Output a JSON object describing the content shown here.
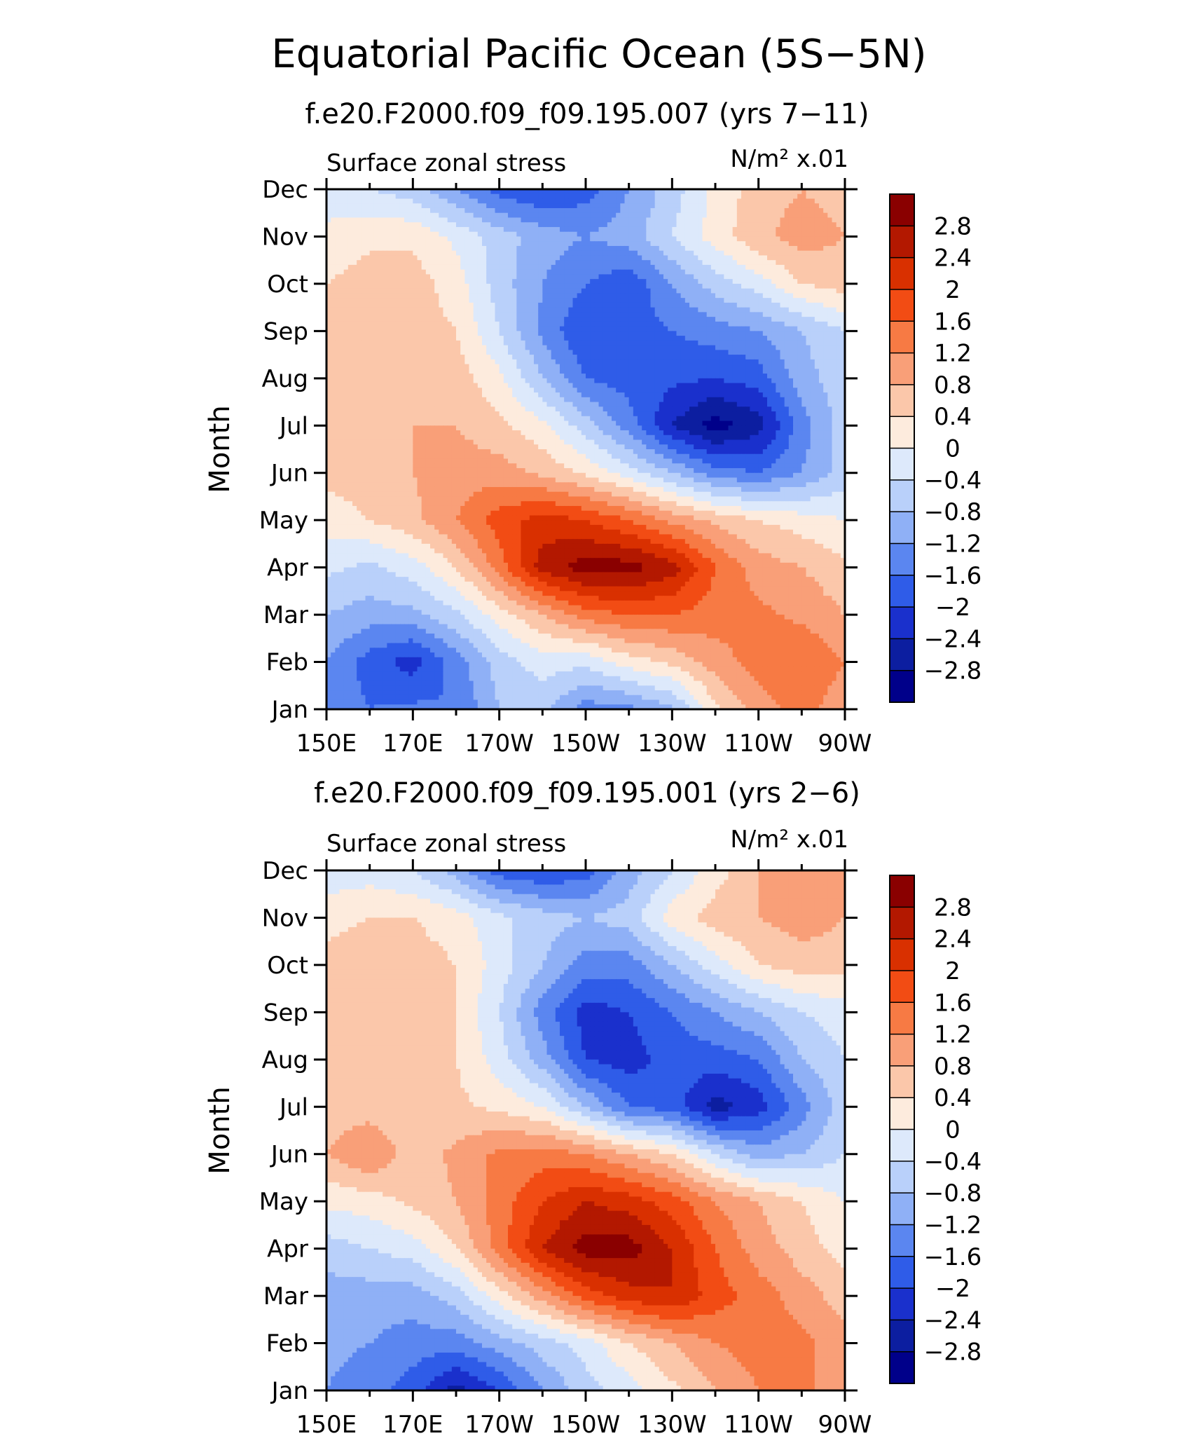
{
  "figure": {
    "title": "Equatorial Pacific Ocean (5S−5N)"
  },
  "chart_data": [
    {
      "type": "heatmap",
      "run_title": "f.e20.F2000.f09_f09.195.007 (yrs 7−11)",
      "variable_label": "Surface zonal stress",
      "units_label": "N/m² x.01",
      "ylabel": "Month",
      "x_ticks": [
        "150E",
        "170E",
        "170W",
        "150W",
        "130W",
        "110W",
        "90W"
      ],
      "y_ticks": [
        "Jan",
        "Feb",
        "Mar",
        "Apr",
        "May",
        "Jun",
        "Jul",
        "Aug",
        "Sep",
        "Oct",
        "Nov",
        "Dec"
      ],
      "xlim": [
        150,
        270
      ],
      "ylim": [
        1,
        12
      ],
      "x_grid_deg": [
        150,
        160,
        170,
        180,
        190,
        200,
        210,
        220,
        230,
        240,
        250,
        260,
        270
      ],
      "z_rows": [
        [
          -1.3,
          -1.6,
          -1.5,
          -1.6,
          -0.8,
          -0.7,
          -1.4,
          -1.3,
          -0.9,
          0.3,
          1.0,
          1.4,
          0.9
        ],
        [
          -1.2,
          -1.8,
          -2.2,
          -1.4,
          -0.6,
          -0.2,
          -0.3,
          0.2,
          0.5,
          1.0,
          1.4,
          1.6,
          1.2
        ],
        [
          -0.8,
          -1.0,
          -0.9,
          -0.5,
          0.2,
          0.8,
          1.4,
          1.6,
          1.6,
          1.4,
          1.3,
          1.1,
          0.8
        ],
        [
          -0.3,
          -0.5,
          -0.2,
          0.4,
          1.4,
          2.6,
          3.0,
          3.0,
          2.6,
          1.6,
          1.0,
          0.8,
          0.5
        ],
        [
          0.2,
          0.4,
          0.7,
          1.2,
          1.8,
          2.2,
          2.0,
          1.6,
          1.1,
          0.7,
          0.4,
          0.2,
          0.0
        ],
        [
          0.5,
          0.6,
          0.8,
          1.0,
          1.0,
          0.7,
          0.3,
          -0.2,
          -0.8,
          -1.4,
          -1.6,
          -1.2,
          -0.6
        ],
        [
          0.6,
          0.7,
          0.8,
          0.8,
          0.5,
          0.1,
          -0.6,
          -1.4,
          -2.4,
          -3.0,
          -2.6,
          -1.4,
          -0.6
        ],
        [
          0.6,
          0.7,
          0.7,
          0.6,
          0.1,
          -0.8,
          -1.6,
          -1.8,
          -1.9,
          -2.0,
          -1.8,
          -1.0,
          -0.5
        ],
        [
          0.5,
          0.7,
          0.6,
          0.4,
          -0.4,
          -1.3,
          -2.0,
          -1.8,
          -1.6,
          -1.4,
          -1.2,
          -0.8,
          -0.4
        ],
        [
          0.4,
          0.6,
          0.6,
          0.2,
          -0.6,
          -1.2,
          -1.6,
          -1.9,
          -1.2,
          -0.6,
          -0.2,
          0.4,
          0.6
        ],
        [
          0.1,
          0.3,
          0.3,
          -0.1,
          -0.6,
          -1.0,
          -1.2,
          -1.0,
          -0.4,
          0.2,
          0.7,
          1.0,
          0.8
        ],
        [
          -0.2,
          -0.4,
          -0.6,
          -1.2,
          -1.8,
          -2.0,
          -1.8,
          -1.2,
          -0.6,
          0.1,
          0.6,
          0.8,
          0.6
        ]
      ]
    },
    {
      "type": "heatmap",
      "run_title": "f.e20.F2000.f09_f09.195.001 (yrs 2−6)",
      "variable_label": "Surface zonal stress",
      "units_label": "N/m² x.01",
      "ylabel": "Month",
      "x_ticks": [
        "150E",
        "170E",
        "170W",
        "150W",
        "130W",
        "110W",
        "90W"
      ],
      "y_ticks": [
        "Jan",
        "Feb",
        "Mar",
        "Apr",
        "May",
        "Jun",
        "Jul",
        "Aug",
        "Sep",
        "Oct",
        "Nov",
        "Dec"
      ],
      "xlim": [
        150,
        270
      ],
      "ylim": [
        1,
        12
      ],
      "x_grid_deg": [
        150,
        160,
        170,
        180,
        190,
        200,
        210,
        220,
        230,
        240,
        250,
        260,
        270
      ],
      "z_rows": [
        [
          -1.2,
          -1.4,
          -1.8,
          -2.6,
          -2.0,
          -1.2,
          -0.6,
          -0.2,
          0.3,
          0.8,
          1.2,
          1.3,
          1.0
        ],
        [
          -1.1,
          -1.2,
          -1.4,
          -1.4,
          -1.0,
          -0.6,
          -0.2,
          0.4,
          0.8,
          1.2,
          1.4,
          1.3,
          1.0
        ],
        [
          -1.0,
          -1.0,
          -1.0,
          -0.6,
          0.2,
          1.0,
          1.8,
          2.2,
          2.4,
          1.8,
          1.4,
          1.0,
          0.6
        ],
        [
          -0.6,
          -0.4,
          -0.2,
          0.4,
          1.4,
          2.4,
          3.0,
          3.0,
          2.4,
          1.6,
          1.0,
          0.6,
          0.2
        ],
        [
          0.1,
          0.2,
          0.5,
          0.8,
          1.4,
          2.0,
          2.4,
          2.2,
          1.8,
          1.2,
          0.8,
          0.4,
          0.0
        ],
        [
          0.8,
          1.2,
          0.6,
          0.9,
          1.3,
          1.4,
          1.2,
          0.8,
          0.4,
          -0.4,
          -1.0,
          -0.8,
          -0.4
        ],
        [
          0.6,
          0.6,
          0.4,
          0.5,
          0.3,
          0.0,
          -0.8,
          -1.6,
          -1.8,
          -2.6,
          -2.2,
          -1.4,
          -0.6
        ],
        [
          0.6,
          0.6,
          0.6,
          0.4,
          -0.2,
          -1.0,
          -2.0,
          -2.2,
          -1.8,
          -1.8,
          -1.6,
          -0.8,
          -0.4
        ],
        [
          0.6,
          0.6,
          0.6,
          0.4,
          -0.4,
          -1.4,
          -2.2,
          -2.0,
          -1.6,
          -1.2,
          -0.8,
          -0.4,
          -0.2
        ],
        [
          0.5,
          0.6,
          0.6,
          0.4,
          -0.2,
          -0.8,
          -1.4,
          -1.4,
          -0.8,
          -0.2,
          0.4,
          0.6,
          0.6
        ],
        [
          0.3,
          0.4,
          0.4,
          0.2,
          -0.3,
          -0.6,
          -0.8,
          -0.6,
          0.2,
          0.6,
          0.8,
          1.0,
          0.8
        ],
        [
          -0.3,
          -0.2,
          -0.4,
          -1.0,
          -1.8,
          -2.0,
          -1.8,
          -1.0,
          -0.4,
          0.2,
          0.8,
          1.2,
          0.8
        ]
      ]
    }
  ],
  "colorbar": {
    "labels": [
      "2.8",
      "2.4",
      "2",
      "1.6",
      "1.2",
      "0.8",
      "0.4",
      "0",
      "−0.4",
      "−0.8",
      "−1.2",
      "−1.6",
      "−2",
      "−2.4",
      "−2.8"
    ],
    "levels": [
      2.8,
      2.4,
      2,
      1.6,
      1.2,
      0.8,
      0.4,
      0,
      -0.4,
      -0.8,
      -1.2,
      -1.6,
      -2,
      -2.4,
      -2.8
    ],
    "colors": [
      "#8a0000",
      "#b31800",
      "#d93000",
      "#f24c14",
      "#f77a44",
      "#f99f78",
      "#fbc7aa",
      "#fdebdd",
      "#dde9fb",
      "#b9d0fa",
      "#8fb0f6",
      "#5b86f0",
      "#2f5ce8",
      "#1a30cc",
      "#0c1ea0",
      "#00008a"
    ]
  }
}
